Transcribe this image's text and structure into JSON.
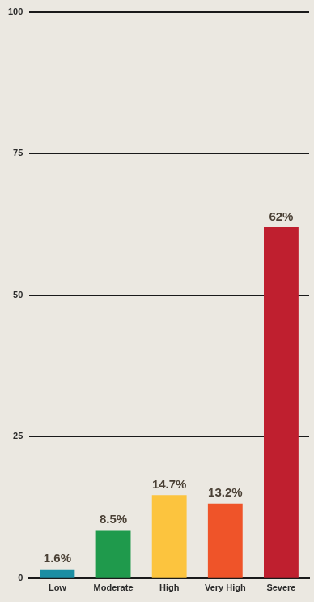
{
  "chart_data": {
    "type": "bar",
    "categories": [
      "Low",
      "Moderate",
      "High",
      "Very High",
      "Severe"
    ],
    "values": [
      1.6,
      8.5,
      14.7,
      13.2,
      62
    ],
    "value_labels": [
      "1.6%",
      "8.5%",
      "14.7%",
      "13.2%",
      "62%"
    ],
    "colors": [
      "#1b8ea3",
      "#1f9a4c",
      "#fcc43e",
      "#ef5429",
      "#bf1f2f"
    ],
    "ylim": [
      0,
      100
    ],
    "yticks": [
      0,
      25,
      50,
      75,
      100
    ],
    "grid": true,
    "data_labels": true
  }
}
